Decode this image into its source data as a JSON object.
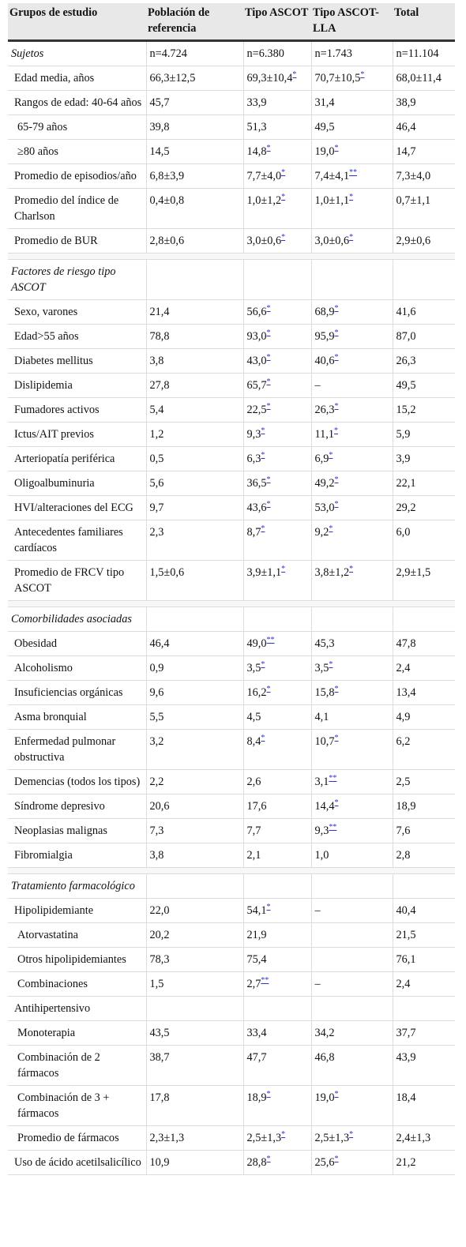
{
  "header": [
    "Grupos de estudio",
    "Población de referencia",
    "Tipo ASCOT",
    "Tipo ASCOT-LLA",
    "Total"
  ],
  "sections": [
    {
      "title": "Sujetos",
      "title_values": [
        "n=4.724",
        "n=6.380",
        "n=1.743",
        "n=11.104"
      ],
      "rows": [
        {
          "label": "Edad media, años",
          "indent": 1,
          "cells": [
            [
              "66,3±12,5",
              ""
            ],
            [
              "69,3±10,4",
              "*"
            ],
            [
              "70,7±10,5",
              "*"
            ],
            [
              "68,0±11,4",
              ""
            ]
          ]
        },
        {
          "label": "Rangos de edad: 40-64 años",
          "indent": 1,
          "cells": [
            [
              "45,7",
              ""
            ],
            [
              "33,9",
              ""
            ],
            [
              "31,4",
              ""
            ],
            [
              "38,9",
              ""
            ]
          ]
        },
        {
          "label": "65-79 años",
          "indent": 2,
          "cells": [
            [
              "39,8",
              ""
            ],
            [
              "51,3",
              ""
            ],
            [
              "49,5",
              ""
            ],
            [
              "46,4",
              ""
            ]
          ]
        },
        {
          "label": "≥80 años",
          "indent": 2,
          "cells": [
            [
              "14,5",
              ""
            ],
            [
              "14,8",
              "*"
            ],
            [
              "19,0",
              "*"
            ],
            [
              "14,7",
              ""
            ]
          ]
        },
        {
          "label": "Promedio de episodios/año",
          "indent": 1,
          "cells": [
            [
              "6,8±3,9",
              ""
            ],
            [
              "7,7±4,0",
              "*"
            ],
            [
              "7,4±4,1",
              "**"
            ],
            [
              "7,3±4,0",
              ""
            ]
          ]
        },
        {
          "label": "Promedio del índice de Charlson",
          "indent": 1,
          "cells": [
            [
              "0,4±0,8",
              ""
            ],
            [
              "1,0±1,2",
              "*"
            ],
            [
              "1,0±1,1",
              "*"
            ],
            [
              "0,7±1,1",
              ""
            ]
          ]
        },
        {
          "label": "Promedio de BUR",
          "indent": 1,
          "cells": [
            [
              "2,8±0,6",
              ""
            ],
            [
              "3,0±0,6",
              "*"
            ],
            [
              "3,0±0,6",
              "*"
            ],
            [
              "2,9±0,6",
              ""
            ]
          ]
        }
      ]
    },
    {
      "title": "Factores de riesgo tipo ASCOT",
      "title_values": [
        "",
        "",
        "",
        ""
      ],
      "rows": [
        {
          "label": "Sexo, varones",
          "indent": 1,
          "cells": [
            [
              "21,4",
              ""
            ],
            [
              "56,6",
              "*"
            ],
            [
              "68,9",
              "*"
            ],
            [
              "41,6",
              ""
            ]
          ]
        },
        {
          "label": "Edad>55 años",
          "indent": 1,
          "cells": [
            [
              "78,8",
              ""
            ],
            [
              "93,0",
              "*"
            ],
            [
              "95,9",
              "*"
            ],
            [
              "87,0",
              ""
            ]
          ]
        },
        {
          "label": "Diabetes mellitus",
          "indent": 1,
          "cells": [
            [
              "3,8",
              ""
            ],
            [
              "43,0",
              "*"
            ],
            [
              "40,6",
              "*"
            ],
            [
              "26,3",
              ""
            ]
          ]
        },
        {
          "label": "Dislipidemia",
          "indent": 1,
          "cells": [
            [
              "27,8",
              ""
            ],
            [
              "65,7",
              "*"
            ],
            [
              "–",
              ""
            ],
            [
              "49,5",
              ""
            ]
          ]
        },
        {
          "label": "Fumadores activos",
          "indent": 1,
          "cells": [
            [
              "5,4",
              ""
            ],
            [
              "22,5",
              "*"
            ],
            [
              "26,3",
              "*"
            ],
            [
              "15,2",
              ""
            ]
          ]
        },
        {
          "label": "Ictus/AIT previos",
          "indent": 1,
          "cells": [
            [
              "1,2",
              ""
            ],
            [
              "9,3",
              "*"
            ],
            [
              "11,1",
              "*"
            ],
            [
              "5,9",
              ""
            ]
          ]
        },
        {
          "label": "Arteriopatía periférica",
          "indent": 1,
          "cells": [
            [
              "0,5",
              ""
            ],
            [
              "6,3",
              "*"
            ],
            [
              "6,9",
              "*"
            ],
            [
              "3,9",
              ""
            ]
          ]
        },
        {
          "label": "Oligoalbuminuria",
          "indent": 1,
          "cells": [
            [
              "5,6",
              ""
            ],
            [
              "36,5",
              "*"
            ],
            [
              "49,2",
              "*"
            ],
            [
              "22,1",
              ""
            ]
          ]
        },
        {
          "label": "HVI/alteraciones del ECG",
          "indent": 1,
          "cells": [
            [
              "9,7",
              ""
            ],
            [
              "43,6",
              "*"
            ],
            [
              "53,0",
              "*"
            ],
            [
              "29,2",
              ""
            ]
          ]
        },
        {
          "label": "Antecedentes familiares cardíacos",
          "indent": 1,
          "cells": [
            [
              "2,3",
              ""
            ],
            [
              "8,7",
              "*"
            ],
            [
              "9,2",
              "*"
            ],
            [
              "6,0",
              ""
            ]
          ]
        },
        {
          "label": "Promedio de FRCV tipo ASCOT",
          "indent": 1,
          "cells": [
            [
              "1,5±0,6",
              ""
            ],
            [
              "3,9±1,1",
              "*"
            ],
            [
              "3,8±1,2",
              "*"
            ],
            [
              "2,9±1,5",
              ""
            ]
          ]
        }
      ]
    },
    {
      "title": "Comorbilidades asociadas",
      "title_values": [
        "",
        "",
        "",
        ""
      ],
      "rows": [
        {
          "label": "Obesidad",
          "indent": 1,
          "cells": [
            [
              "46,4",
              ""
            ],
            [
              "49,0",
              "**"
            ],
            [
              "45,3",
              ""
            ],
            [
              "47,8",
              ""
            ]
          ]
        },
        {
          "label": "Alcoholismo",
          "indent": 1,
          "cells": [
            [
              "0,9",
              ""
            ],
            [
              "3,5",
              "*"
            ],
            [
              "3,5",
              "*"
            ],
            [
              "2,4",
              ""
            ]
          ]
        },
        {
          "label": "Insuficiencias orgánicas",
          "indent": 1,
          "cells": [
            [
              "9,6",
              ""
            ],
            [
              "16,2",
              "*"
            ],
            [
              "15,8",
              "*"
            ],
            [
              "13,4",
              ""
            ]
          ]
        },
        {
          "label": "Asma bronquial",
          "indent": 1,
          "cells": [
            [
              "5,5",
              ""
            ],
            [
              "4,5",
              ""
            ],
            [
              "4,1",
              ""
            ],
            [
              "4,9",
              ""
            ]
          ]
        },
        {
          "label": "Enfermedad pulmonar obstructiva",
          "indent": 1,
          "cells": [
            [
              "3,2",
              ""
            ],
            [
              "8,4",
              "*"
            ],
            [
              "10,7",
              "*"
            ],
            [
              "6,2",
              ""
            ]
          ]
        },
        {
          "label": "Demencias (todos los tipos)",
          "indent": 1,
          "cells": [
            [
              "2,2",
              ""
            ],
            [
              "2,6",
              ""
            ],
            [
              "3,1",
              "**"
            ],
            [
              "2,5",
              ""
            ]
          ]
        },
        {
          "label": "Síndrome depresivo",
          "indent": 1,
          "cells": [
            [
              "20,6",
              ""
            ],
            [
              "17,6",
              ""
            ],
            [
              "14,4",
              "*"
            ],
            [
              "18,9",
              ""
            ]
          ]
        },
        {
          "label": "Neoplasias malignas",
          "indent": 1,
          "cells": [
            [
              "7,3",
              ""
            ],
            [
              "7,7",
              ""
            ],
            [
              "9,3",
              "**"
            ],
            [
              "7,6",
              ""
            ]
          ]
        },
        {
          "label": "Fibromialgia",
          "indent": 1,
          "cells": [
            [
              "3,8",
              ""
            ],
            [
              "2,1",
              ""
            ],
            [
              "1,0",
              ""
            ],
            [
              "2,8",
              ""
            ]
          ]
        }
      ]
    },
    {
      "title": "Tratamiento farmacológico",
      "title_values": [
        "",
        "",
        "",
        ""
      ],
      "rows": [
        {
          "label": "Hipolipidemiante",
          "indent": 1,
          "cells": [
            [
              "22,0",
              ""
            ],
            [
              "54,1",
              "*"
            ],
            [
              "–",
              ""
            ],
            [
              "40,4",
              ""
            ]
          ]
        },
        {
          "label": "Atorvastatina",
          "indent": 3,
          "cells": [
            [
              "20,2",
              ""
            ],
            [
              "21,9",
              ""
            ],
            [
              "",
              ""
            ],
            [
              "21,5",
              ""
            ]
          ]
        },
        {
          "label": "Otros hipolipidemiantes",
          "indent": 3,
          "cells": [
            [
              "78,3",
              ""
            ],
            [
              "75,4",
              ""
            ],
            [
              "",
              ""
            ],
            [
              "76,1",
              ""
            ]
          ]
        },
        {
          "label": "Combinaciones",
          "indent": 3,
          "cells": [
            [
              "1,5",
              ""
            ],
            [
              "2,7",
              "**"
            ],
            [
              "–",
              ""
            ],
            [
              "2,4",
              ""
            ]
          ]
        },
        {
          "label": "Antihipertensivo",
          "indent": 1,
          "cells": [
            [
              "",
              ""
            ],
            [
              "",
              ""
            ],
            [
              "",
              ""
            ],
            [
              "",
              ""
            ]
          ]
        },
        {
          "label": "Monoterapia",
          "indent": 3,
          "cells": [
            [
              "43,5",
              ""
            ],
            [
              "33,4",
              ""
            ],
            [
              "34,2",
              ""
            ],
            [
              "37,7",
              ""
            ]
          ]
        },
        {
          "label": "Combinación de 2 fármacos",
          "indent": 3,
          "cells": [
            [
              "38,7",
              ""
            ],
            [
              "47,7",
              ""
            ],
            [
              "46,8",
              ""
            ],
            [
              "43,9",
              ""
            ]
          ]
        },
        {
          "label": "Combinación de 3 + fármacos",
          "indent": 3,
          "cells": [
            [
              "17,8",
              ""
            ],
            [
              "18,9",
              "*"
            ],
            [
              "19,0",
              "*"
            ],
            [
              "18,4",
              ""
            ]
          ]
        },
        {
          "label": "Promedio de fármacos",
          "indent": 3,
          "cells": [
            [
              "2,3±1,3",
              ""
            ],
            [
              "2,5±1,3",
              "*"
            ],
            [
              "2,5±1,3",
              "*"
            ],
            [
              "2,4±1,3",
              ""
            ]
          ]
        },
        {
          "label": "Uso de ácido acetilsalicílico",
          "indent": 1,
          "cells": [
            [
              "10,9",
              ""
            ],
            [
              "28,8",
              "*"
            ],
            [
              "25,6",
              "*"
            ],
            [
              "21,2",
              ""
            ]
          ]
        }
      ]
    }
  ]
}
